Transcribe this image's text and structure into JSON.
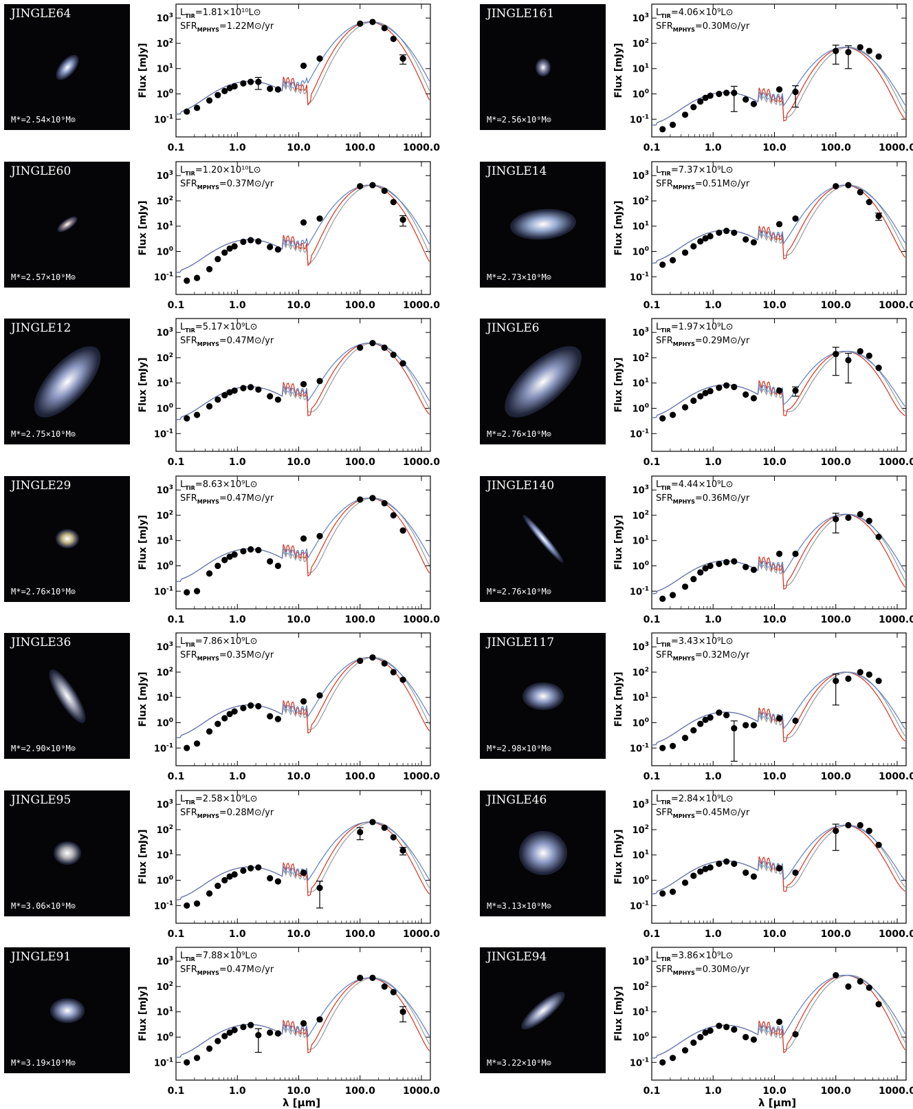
{
  "colors": {
    "model_blue": "#5b7fc1",
    "model_red": "#d8321e",
    "model_gray": "#9a9a9a",
    "points": "#000000"
  },
  "axes": {
    "ylabel": "Flux [mJy]",
    "xlabel": "λ [μm]",
    "x_ticks": [
      "0.1",
      "1.0",
      "10.0",
      "100.0",
      "1000.0"
    ],
    "y_ticks_exp": [
      "-1",
      "0",
      "1",
      "2",
      "3"
    ],
    "y_tick_base": "10"
  },
  "chart_data": [
    {
      "type": "scatter",
      "name": "JINGLE64",
      "mass": "M*=2.54×10⁹M⊙",
      "ltir": "1.81×10¹⁰",
      "sfr": "1.22",
      "scale": 0.9,
      "blob": {
        "w": 44,
        "h": 22,
        "rot": -50,
        "c": "#8c9bc8"
      },
      "x": [
        0.15,
        0.22,
        0.35,
        0.48,
        0.62,
        0.75,
        0.9,
        1.25,
        1.65,
        2.2,
        3.4,
        4.6,
        12,
        22,
        100,
        160,
        250,
        350,
        500
      ],
      "y": [
        0.2,
        0.28,
        0.55,
        0.9,
        1.3,
        1.7,
        2.0,
        2.6,
        3.0,
        3.0,
        1.6,
        1.5,
        13,
        25,
        600,
        700,
        400,
        150,
        25
      ],
      "yerr_lo": [
        0,
        0,
        0,
        0,
        0,
        0,
        0,
        0,
        0,
        1.5,
        0,
        0,
        0,
        0,
        0,
        0,
        0,
        0,
        10
      ]
    },
    {
      "type": "scatter",
      "name": "JINGLE161",
      "mass": "M*=2.56×10⁹M⊙",
      "ltir": "4.06×10⁹",
      "sfr": "0.30",
      "blob": {
        "w": 22,
        "h": 26,
        "rot": 0,
        "c": "#8a8aa8"
      },
      "x": [
        0.15,
        0.22,
        0.35,
        0.48,
        0.62,
        0.75,
        0.9,
        1.25,
        1.65,
        2.2,
        3.4,
        4.6,
        12,
        22,
        100,
        160,
        250,
        350,
        500
      ],
      "y": [
        0.04,
        0.06,
        0.15,
        0.3,
        0.5,
        0.7,
        0.85,
        1.0,
        1.1,
        1.1,
        0.6,
        0.4,
        1.5,
        1.2,
        50,
        45,
        70,
        50,
        30
      ],
      "yerr_lo": [
        0,
        0,
        0,
        0,
        0,
        0,
        0,
        0,
        0,
        0.9,
        0,
        0,
        0,
        0.9,
        35,
        35,
        0,
        0,
        0
      ]
    },
    {
      "type": "scatter",
      "name": "JINGLE60",
      "mass": "M*=2.57×10⁹M⊙",
      "ltir": "1.20×10¹⁰",
      "sfr": "0.37",
      "blob": {
        "w": 34,
        "h": 14,
        "rot": -35,
        "c": "#9a8a90"
      },
      "x": [
        0.15,
        0.22,
        0.35,
        0.48,
        0.62,
        0.75,
        0.9,
        1.25,
        1.65,
        2.2,
        3.4,
        4.6,
        12,
        22,
        100,
        160,
        250,
        350,
        500
      ],
      "y": [
        0.07,
        0.09,
        0.2,
        0.5,
        0.9,
        1.3,
        1.6,
        2.4,
        2.8,
        2.5,
        1.5,
        1.2,
        14,
        20,
        380,
        420,
        250,
        90,
        18
      ],
      "yerr_lo": [
        0,
        0,
        0,
        0,
        0,
        0,
        0,
        0,
        0,
        0,
        0,
        0,
        0,
        0,
        0,
        0,
        0,
        0,
        8
      ]
    },
    {
      "type": "scatter",
      "name": "JINGLE14",
      "mass": "M*=2.73×10⁹M⊙",
      "ltir": "7.37×10⁹",
      "sfr": "0.51",
      "blob": {
        "w": 96,
        "h": 44,
        "rot": -5,
        "c": "#95a8cf"
      },
      "x": [
        0.15,
        0.22,
        0.35,
        0.48,
        0.62,
        0.75,
        0.9,
        1.25,
        1.65,
        2.2,
        3.4,
        4.6,
        12,
        22,
        100,
        160,
        250,
        350,
        500
      ],
      "y": [
        0.3,
        0.45,
        0.9,
        1.6,
        2.5,
        3.3,
        4.0,
        5.5,
        6.5,
        5.5,
        3.0,
        2.3,
        12,
        20,
        380,
        420,
        220,
        90,
        25
      ],
      "yerr_lo": [
        0,
        0,
        0,
        0,
        0,
        0,
        0,
        0,
        0,
        0,
        0,
        0,
        0,
        0,
        0,
        0,
        0,
        0,
        8
      ]
    },
    {
      "type": "scatter",
      "name": "JINGLE12",
      "mass": "M*=2.75×10⁹M⊙",
      "ltir": "5.17×10⁹",
      "sfr": "0.47",
      "blob": {
        "w": 130,
        "h": 56,
        "rot": -48,
        "c": "#8f9ac4"
      },
      "x": [
        0.15,
        0.22,
        0.35,
        0.48,
        0.62,
        0.75,
        0.9,
        1.25,
        1.65,
        2.2,
        3.4,
        4.6,
        12,
        22,
        100,
        160,
        250,
        350,
        500
      ],
      "y": [
        0.4,
        0.55,
        1.2,
        2.2,
        3.3,
        4.3,
        5.0,
        6.3,
        6.8,
        5.5,
        3.0,
        2.2,
        9,
        12,
        250,
        380,
        250,
        130,
        60
      ],
      "yerr_lo": [
        0,
        0,
        0,
        0,
        0,
        0,
        0,
        0,
        0,
        0,
        0,
        0,
        0,
        0,
        0,
        0,
        0,
        0,
        0
      ]
    },
    {
      "type": "scatter",
      "name": "JINGLE6",
      "mass": "M*=2.76×10⁹M⊙",
      "ltir": "1.97×10⁹",
      "sfr": "0.29",
      "blob": {
        "w": 140,
        "h": 60,
        "rot": -42,
        "c": "#8a96be"
      },
      "x": [
        0.15,
        0.22,
        0.35,
        0.48,
        0.62,
        0.75,
        0.9,
        1.25,
        1.65,
        2.2,
        3.4,
        4.6,
        12,
        22,
        100,
        160,
        250,
        350,
        500
      ],
      "y": [
        0.4,
        0.55,
        1.1,
        2.0,
        3.0,
        4.0,
        4.8,
        6.5,
        8.0,
        7.0,
        3.5,
        2.5,
        5,
        5,
        140,
        80,
        180,
        120,
        40
      ],
      "yerr_lo": [
        0,
        0,
        0,
        0,
        0,
        0,
        0,
        0,
        0,
        0,
        0,
        0,
        0,
        2,
        120,
        70,
        0,
        0,
        0
      ]
    },
    {
      "type": "scatter",
      "name": "JINGLE29",
      "mass": "M*=2.76×10⁹M⊙",
      "ltir": "8.63×10⁹",
      "sfr": "0.47",
      "blob": {
        "w": 34,
        "h": 28,
        "rot": 0,
        "c": "#c9b98a"
      },
      "x": [
        0.15,
        0.22,
        0.35,
        0.48,
        0.62,
        0.75,
        0.9,
        1.25,
        1.65,
        2.2,
        3.4,
        4.6,
        12,
        22,
        100,
        160,
        250,
        350,
        500
      ],
      "y": [
        0.09,
        0.1,
        0.5,
        1.0,
        1.7,
        2.3,
        2.8,
        3.8,
        4.5,
        4.2,
        1.5,
        1.0,
        12,
        15,
        420,
        480,
        300,
        100,
        25
      ],
      "yerr_lo": [
        0,
        0,
        0,
        0,
        0,
        0,
        0,
        0,
        0,
        0,
        0,
        0,
        0,
        0,
        0,
        0,
        0,
        0,
        0
      ]
    },
    {
      "type": "scatter",
      "name": "JINGLE140",
      "mass": "M*=2.76×10⁹M⊙",
      "ltir": "4.44×10⁹",
      "sfr": "0.36",
      "blob": {
        "w": 90,
        "h": 12,
        "rot": 50,
        "c": "#96a6d2"
      },
      "x": [
        0.15,
        0.22,
        0.35,
        0.48,
        0.62,
        0.75,
        0.9,
        1.25,
        1.65,
        2.2,
        3.4,
        4.6,
        12,
        22,
        100,
        160,
        250,
        350,
        500
      ],
      "y": [
        0.05,
        0.07,
        0.15,
        0.3,
        0.55,
        0.8,
        1.0,
        1.2,
        1.4,
        1.5,
        0.9,
        0.7,
        3,
        3,
        70,
        80,
        110,
        60,
        14
      ],
      "yerr_lo": [
        0,
        0,
        0,
        0,
        0,
        0,
        0,
        0,
        0,
        0,
        0,
        0,
        0,
        0,
        50,
        0,
        0,
        0,
        0
      ]
    },
    {
      "type": "scatter",
      "name": "JINGLE36",
      "mass": "M*=2.90×10⁹M⊙",
      "ltir": "7.86×10⁹",
      "sfr": "0.35",
      "blob": {
        "w": 90,
        "h": 26,
        "rot": 58,
        "c": "#a0a2b4"
      },
      "x": [
        0.15,
        0.22,
        0.35,
        0.48,
        0.62,
        0.75,
        0.9,
        1.25,
        1.65,
        2.2,
        3.4,
        4.6,
        12,
        22,
        100,
        160,
        250,
        350,
        500
      ],
      "y": [
        0.1,
        0.15,
        0.45,
        0.9,
        1.5,
        2.2,
        2.8,
        3.8,
        4.8,
        4.5,
        1.8,
        1.4,
        7,
        12,
        280,
        380,
        220,
        100,
        50
      ],
      "yerr_lo": [
        0,
        0,
        0,
        0,
        0,
        0,
        0,
        0,
        0,
        0,
        0,
        0,
        0,
        0,
        0,
        0,
        0,
        0,
        0
      ]
    },
    {
      "type": "scatter",
      "name": "JINGLE117",
      "mass": "M*=2.98×10⁹M⊙",
      "ltir": "3.43×10⁹",
      "sfr": "0.32",
      "blob": {
        "w": 60,
        "h": 40,
        "rot": 0,
        "c": "#8f9bc4"
      },
      "x": [
        0.15,
        0.22,
        0.35,
        0.48,
        0.62,
        0.75,
        0.9,
        1.25,
        1.65,
        2.2,
        3.4,
        4.6,
        12,
        22,
        100,
        160,
        250,
        350,
        500
      ],
      "y": [
        0.1,
        0.12,
        0.25,
        0.5,
        0.9,
        1.3,
        1.6,
        2.5,
        2.0,
        0.6,
        0.8,
        0.8,
        1.5,
        1.2,
        45,
        55,
        100,
        80,
        45
      ],
      "yerr_lo": [
        0,
        0,
        0,
        0,
        0,
        0,
        0,
        0,
        0,
        0.58,
        0,
        0,
        0,
        0,
        40,
        0,
        0,
        0,
        0
      ]
    },
    {
      "type": "scatter",
      "name": "JINGLE95",
      "mass": "M*=3.06×10⁹M⊙",
      "ltir": "2.58×10⁹",
      "sfr": "0.28",
      "blob": {
        "w": 40,
        "h": 34,
        "rot": 0,
        "c": "#b4b4b8"
      },
      "x": [
        0.15,
        0.22,
        0.35,
        0.48,
        0.62,
        0.75,
        0.9,
        1.25,
        1.65,
        2.2,
        3.4,
        4.6,
        12,
        22,
        100,
        160,
        250,
        350,
        500
      ],
      "y": [
        0.1,
        0.12,
        0.3,
        0.6,
        1.0,
        1.4,
        1.7,
        2.4,
        3.0,
        3.2,
        1.2,
        0.9,
        2,
        0.5,
        80,
        200,
        120,
        50,
        15
      ],
      "yerr_lo": [
        0,
        0,
        0,
        0,
        0,
        0,
        0,
        0,
        0,
        0,
        0,
        0,
        0,
        0.42,
        40,
        0,
        0,
        0,
        5
      ]
    },
    {
      "type": "scatter",
      "name": "JINGLE46",
      "mass": "M*=3.13×10⁹M⊙",
      "ltir": "2.84×10⁹",
      "sfr": "0.45",
      "blob": {
        "w": 70,
        "h": 64,
        "rot": 0,
        "c": "#8f9bc6"
      },
      "x": [
        0.15,
        0.22,
        0.35,
        0.48,
        0.62,
        0.75,
        0.9,
        1.25,
        1.65,
        2.2,
        3.4,
        4.6,
        12,
        22,
        100,
        160,
        250,
        350,
        500
      ],
      "y": [
        0.3,
        0.35,
        0.8,
        1.5,
        2.2,
        2.8,
        3.2,
        4.5,
        5.5,
        4.5,
        2.0,
        1.4,
        3,
        2,
        90,
        150,
        150,
        90,
        25
      ],
      "yerr_lo": [
        0,
        0,
        0,
        0,
        0,
        0,
        0,
        0,
        0,
        0,
        0,
        0,
        0,
        0,
        75,
        0,
        0,
        0,
        0
      ]
    },
    {
      "type": "scatter",
      "name": "JINGLE91",
      "mass": "M*=3.19×10⁹M⊙",
      "ltir": "7.88×10⁹",
      "sfr": "0.47",
      "blob": {
        "w": 50,
        "h": 36,
        "rot": 0,
        "c": "#95a0c8"
      },
      "x": [
        0.15,
        0.22,
        0.35,
        0.48,
        0.62,
        0.75,
        0.9,
        1.25,
        1.65,
        2.2,
        3.4,
        4.6,
        12,
        22,
        100,
        160,
        250,
        350,
        500
      ],
      "y": [
        0.1,
        0.15,
        0.35,
        0.7,
        1.1,
        1.5,
        1.9,
        2.5,
        3.0,
        1.2,
        1.5,
        1.4,
        3.5,
        5,
        220,
        220,
        100,
        60,
        10
      ],
      "yerr_lo": [
        0,
        0,
        0,
        0,
        0,
        0,
        0,
        0,
        0,
        0.95,
        0,
        0,
        0,
        0,
        0,
        0,
        0,
        0,
        6
      ]
    },
    {
      "type": "scatter",
      "name": "JINGLE94",
      "mass": "M*=3.22×10⁹M⊙",
      "ltir": "3.86×10⁹",
      "sfr": "0.30",
      "blob": {
        "w": 80,
        "h": 24,
        "rot": -40,
        "c": "#9aa2c2"
      },
      "x": [
        0.15,
        0.22,
        0.35,
        0.48,
        0.62,
        0.75,
        0.9,
        1.25,
        1.65,
        2.2,
        3.4,
        4.6,
        12,
        22,
        100,
        160,
        250,
        350,
        500
      ],
      "y": [
        0.1,
        0.15,
        0.3,
        0.6,
        1.0,
        1.5,
        1.8,
        2.8,
        2.5,
        2.0,
        1.0,
        0.8,
        4,
        1.3,
        280,
        100,
        160,
        90,
        20
      ],
      "yerr_lo": [
        0,
        0,
        0,
        0,
        0,
        0,
        0,
        0,
        0,
        0,
        0,
        0,
        0,
        0,
        0,
        0,
        0,
        0,
        0
      ]
    }
  ]
}
